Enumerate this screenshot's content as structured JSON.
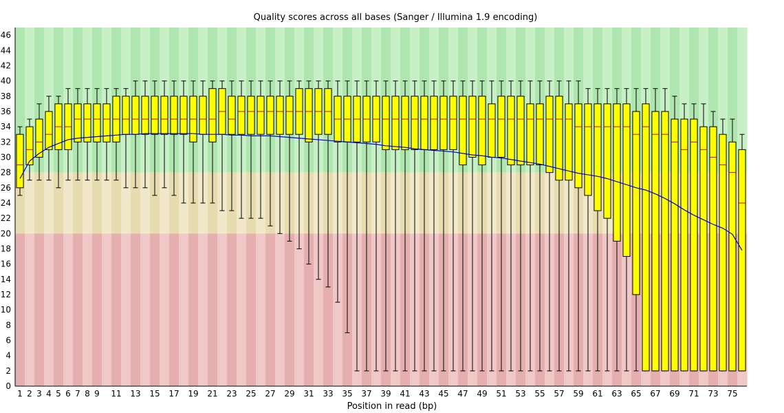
{
  "chart_data": {
    "type": "boxplot",
    "title": "Quality scores across all bases (Sanger / Illumina 1.9 encoding)",
    "xlabel": "Position in read (bp)",
    "ylabel": "",
    "ylim": [
      0,
      47
    ],
    "y_ticks": [
      0,
      2,
      4,
      6,
      8,
      10,
      12,
      14,
      16,
      18,
      20,
      22,
      24,
      26,
      28,
      30,
      32,
      34,
      36,
      38,
      40,
      42,
      44,
      46
    ],
    "x_tick_labels": [
      "1",
      "2",
      "3",
      "4",
      "5",
      "6",
      "7",
      "8",
      "9",
      "11",
      "13",
      "15",
      "17",
      "19",
      "21",
      "23",
      "25",
      "27",
      "29",
      "31",
      "33",
      "35",
      "37",
      "39",
      "41",
      "43",
      "45",
      "47",
      "49",
      "51",
      "53",
      "55",
      "57",
      "59",
      "61",
      "63",
      "65",
      "67",
      "69",
      "71",
      "73",
      "75"
    ],
    "quality_bands": [
      {
        "name": "good",
        "from": 28,
        "to": 47,
        "colors": [
          "#afe6af",
          "#c7f0c7"
        ]
      },
      {
        "name": "reasonable",
        "from": 20,
        "to": 28,
        "colors": [
          "#e6dcaf",
          "#f0e8c8"
        ]
      },
      {
        "name": "poor",
        "from": 0,
        "to": 20,
        "colors": [
          "#e6afaf",
          "#f0c8c8"
        ]
      }
    ],
    "colors": {
      "box": "#ffff00",
      "median": "#cc0000",
      "mean": "#0000cc",
      "whisker": "#000000"
    },
    "positions": [
      1,
      2,
      3,
      4,
      5,
      6,
      7,
      8,
      9,
      10,
      11,
      12,
      13,
      14,
      15,
      16,
      17,
      18,
      19,
      20,
      21,
      22,
      23,
      24,
      25,
      26,
      27,
      28,
      29,
      30,
      31,
      32,
      33,
      34,
      35,
      36,
      37,
      38,
      39,
      40,
      41,
      42,
      43,
      44,
      45,
      46,
      47,
      48,
      49,
      50,
      51,
      52,
      53,
      54,
      55,
      56,
      57,
      58,
      59,
      60,
      61,
      62,
      63,
      64,
      65,
      66,
      67,
      68,
      69,
      70,
      71,
      72,
      73,
      74,
      75,
      76
    ],
    "q1": [
      26,
      29,
      30,
      31,
      31,
      31,
      32,
      32,
      32,
      32,
      32,
      33,
      33,
      33,
      33,
      33,
      33,
      33,
      32,
      33,
      32,
      33,
      33,
      33,
      33,
      33,
      33,
      33,
      33,
      33,
      32,
      33,
      33,
      32,
      32,
      32,
      32,
      32,
      31,
      31,
      31,
      31,
      31,
      31,
      31,
      31,
      29,
      30,
      29,
      30,
      30,
      29,
      29,
      29,
      29,
      28,
      27,
      27,
      26,
      25,
      23,
      22,
      19,
      17,
      12,
      2,
      2,
      2,
      2,
      2,
      2,
      2,
      2,
      2,
      2,
      2
    ],
    "median": [
      29,
      31,
      32,
      33,
      34,
      34,
      35,
      35,
      35,
      35,
      35,
      35,
      35,
      35,
      35,
      35,
      35,
      35,
      35,
      35,
      35,
      36,
      35,
      36,
      36,
      36,
      36,
      36,
      36,
      36,
      36,
      36,
      36,
      35,
      35,
      35,
      35,
      35,
      35,
      35,
      35,
      35,
      35,
      35,
      35,
      35,
      35,
      35,
      35,
      35,
      35,
      35,
      35,
      35,
      35,
      35,
      35,
      35,
      34,
      34,
      34,
      34,
      34,
      34,
      33,
      34,
      33,
      33,
      32,
      31,
      32,
      31,
      30,
      29,
      28,
      24
    ],
    "q3": [
      33,
      34,
      35,
      36,
      37,
      37,
      37,
      37,
      37,
      37,
      38,
      38,
      38,
      38,
      38,
      38,
      38,
      38,
      38,
      38,
      39,
      39,
      38,
      38,
      38,
      38,
      38,
      38,
      38,
      39,
      39,
      39,
      39,
      38,
      38,
      38,
      38,
      38,
      38,
      38,
      38,
      38,
      38,
      38,
      38,
      38,
      38,
      38,
      38,
      37,
      38,
      38,
      38,
      37,
      37,
      38,
      38,
      37,
      37,
      37,
      37,
      37,
      37,
      37,
      36,
      37,
      36,
      36,
      35,
      35,
      35,
      34,
      34,
      33,
      32,
      31
    ],
    "low": [
      25,
      27,
      27,
      27,
      26,
      27,
      27,
      27,
      27,
      27,
      27,
      26,
      26,
      26,
      25,
      26,
      25,
      24,
      24,
      24,
      24,
      23,
      23,
      22,
      22,
      22,
      21,
      20,
      19,
      18,
      16,
      14,
      13,
      11,
      7,
      2,
      2,
      2,
      2,
      2,
      2,
      2,
      2,
      2,
      2,
      2,
      2,
      2,
      2,
      2,
      2,
      2,
      2,
      2,
      2,
      2,
      2,
      2,
      2,
      2,
      2,
      2,
      2,
      2,
      2,
      2,
      2,
      2,
      2,
      2,
      2,
      2,
      2,
      2,
      2,
      2
    ],
    "high": [
      34,
      35,
      37,
      38,
      38,
      39,
      39,
      39,
      39,
      39,
      39,
      39,
      40,
      40,
      40,
      40,
      40,
      40,
      40,
      40,
      40,
      40,
      40,
      40,
      40,
      40,
      40,
      40,
      40,
      40,
      40,
      40,
      40,
      40,
      40,
      40,
      40,
      40,
      40,
      40,
      40,
      40,
      40,
      40,
      40,
      40,
      40,
      40,
      40,
      40,
      40,
      40,
      40,
      40,
      40,
      40,
      40,
      40,
      40,
      39,
      39,
      39,
      39,
      39,
      39,
      39,
      39,
      39,
      38,
      37,
      37,
      37,
      36,
      35,
      35,
      33
    ],
    "mean": [
      27.2,
      29.5,
      30.5,
      31.3,
      31.8,
      32.3,
      32.5,
      32.6,
      32.7,
      32.8,
      32.9,
      33.0,
      33.0,
      33.1,
      33.1,
      33.1,
      33.1,
      33.1,
      33.1,
      33.0,
      33.0,
      33.0,
      32.9,
      32.9,
      32.8,
      32.8,
      32.8,
      32.7,
      32.6,
      32.5,
      32.4,
      32.3,
      32.2,
      32.1,
      32.0,
      31.9,
      31.8,
      31.7,
      31.5,
      31.4,
      31.3,
      31.1,
      31.0,
      30.9,
      30.8,
      30.7,
      30.5,
      30.3,
      30.2,
      30.0,
      29.9,
      29.7,
      29.5,
      29.3,
      29.1,
      28.8,
      28.5,
      28.2,
      27.9,
      27.7,
      27.5,
      27.2,
      26.8,
      26.4,
      26.0,
      25.7,
      25.2,
      24.6,
      23.9,
      23.1,
      22.4,
      21.8,
      21.2,
      20.7,
      19.9,
      17.8
    ]
  }
}
